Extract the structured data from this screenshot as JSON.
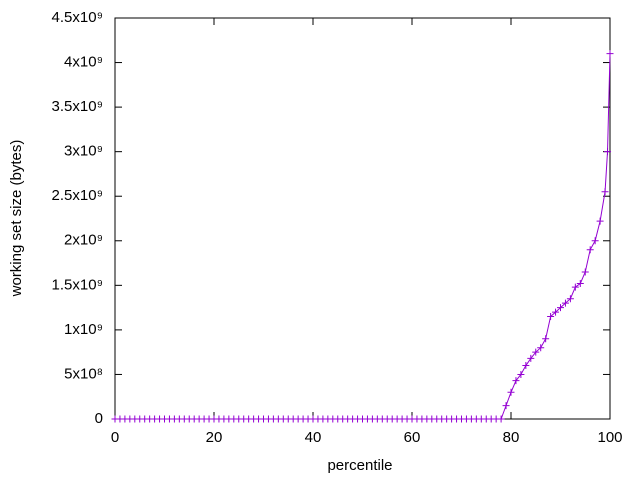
{
  "chart_data": {
    "type": "line",
    "x_label": "percentile",
    "y_label": "working set size (bytes)",
    "x": [
      0,
      1,
      2,
      3,
      4,
      5,
      6,
      7,
      8,
      9,
      10,
      11,
      12,
      13,
      14,
      15,
      16,
      17,
      18,
      19,
      20,
      21,
      22,
      23,
      24,
      25,
      26,
      27,
      28,
      29,
      30,
      31,
      32,
      33,
      34,
      35,
      36,
      37,
      38,
      39,
      40,
      41,
      42,
      43,
      44,
      45,
      46,
      47,
      48,
      49,
      50,
      51,
      52,
      53,
      54,
      55,
      56,
      57,
      58,
      59,
      60,
      61,
      62,
      63,
      64,
      65,
      66,
      67,
      68,
      69,
      70,
      71,
      72,
      73,
      74,
      75,
      76,
      77,
      78,
      79,
      80,
      81,
      82,
      83,
      84,
      85,
      86,
      87,
      88,
      89,
      90,
      91,
      92,
      93,
      94,
      95,
      96,
      97,
      98,
      99,
      99.5,
      100
    ],
    "series": [
      {
        "name": "working set",
        "color": "#9400d3",
        "values": [
          0,
          0,
          0,
          0,
          0,
          0,
          0,
          0,
          0,
          0,
          0,
          0,
          0,
          0,
          0,
          0,
          0,
          0,
          0,
          0,
          0,
          0,
          0,
          0,
          0,
          0,
          0,
          0,
          0,
          0,
          0,
          0,
          0,
          0,
          0,
          0,
          0,
          0,
          0,
          0,
          0,
          0,
          0,
          0,
          0,
          0,
          0,
          0,
          0,
          0,
          0,
          0,
          0,
          0,
          0,
          0,
          0,
          0,
          0,
          0,
          0,
          0,
          0,
          0,
          0,
          0,
          0,
          0,
          0,
          0,
          0,
          0,
          0,
          0,
          0,
          0,
          0,
          0,
          0,
          150000000,
          300000000,
          430000000,
          500000000,
          600000000,
          680000000,
          750000000,
          800000000,
          900000000,
          1150000000,
          1200000000,
          1250000000,
          1300000000,
          1350000000,
          1480000000,
          1520000000,
          1650000000,
          1900000000,
          2000000000,
          2220000000,
          2550000000,
          3000000000,
          4100000000
        ]
      }
    ],
    "xlim": [
      0,
      100
    ],
    "xticks": [
      0,
      20,
      40,
      60,
      80,
      100
    ],
    "ylim": [
      0,
      4500000000
    ],
    "yticks": [
      0,
      {
        "value": 500000000,
        "label": "5x10⁸"
      },
      {
        "value": 1000000000,
        "label": "1x10⁹"
      },
      {
        "value": 1500000000,
        "label": "1.5x10⁹"
      },
      {
        "value": 2000000000,
        "label": "2x10⁹"
      },
      {
        "value": 2500000000,
        "label": "2.5x10⁹"
      },
      {
        "value": 3000000000,
        "label": "3x10⁹"
      },
      {
        "value": 3500000000,
        "label": "3.5x10⁹"
      },
      {
        "value": 4000000000,
        "label": "4x10⁹"
      },
      {
        "value": 4500000000,
        "label": "4.5x10⁹"
      }
    ]
  }
}
